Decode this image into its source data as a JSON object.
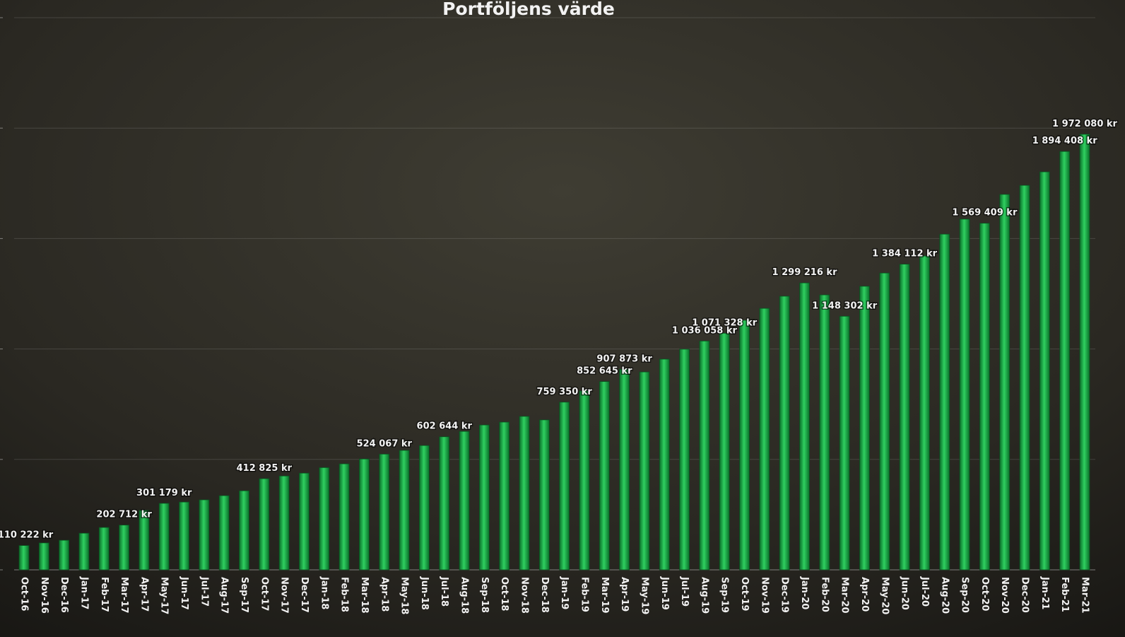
{
  "chart_data": {
    "type": "bar",
    "title": "Portföljens värde",
    "categories": [
      "Oct-16",
      "Nov-16",
      "Dec-16",
      "Jan-17",
      "Feb-17",
      "Mar-17",
      "Apr-17",
      "May-17",
      "Jun-17",
      "Jul-17",
      "Aug-17",
      "Sep-17",
      "Oct-17",
      "Nov-17",
      "Dec-17",
      "Jan-18",
      "Feb-18",
      "Mar-18",
      "Apr-18",
      "May-18",
      "Jun-18",
      "Jul-18",
      "Aug-18",
      "Sep-18",
      "Oct-18",
      "Nov-18",
      "Dec-18",
      "Jan-19",
      "Feb-19",
      "Mar-19",
      "Apr-19",
      "May-19",
      "Jun-19",
      "Jul-19",
      "Aug-19",
      "Sep-19",
      "Oct-19",
      "Nov-19",
      "Dec-19",
      "Jan-20",
      "Feb-20",
      "Mar-20",
      "Apr-20",
      "May-20",
      "Jun-20",
      "Jul-20",
      "Aug-20",
      "Sep-20",
      "Oct-20",
      "Nov-20",
      "Dec-20",
      "Jan-21",
      "Feb-21",
      "Mar-21"
    ],
    "values": [
      110222,
      122000,
      134000,
      166000,
      192000,
      202712,
      269000,
      301179,
      307000,
      317000,
      336000,
      358000,
      412825,
      425000,
      438000,
      463000,
      480000,
      502000,
      524067,
      541000,
      563000,
      602644,
      627000,
      656000,
      669000,
      695000,
      679000,
      759350,
      810000,
      852645,
      907873,
      896000,
      954000,
      999000,
      1036058,
      1071328,
      1130000,
      1184000,
      1239000,
      1299216,
      1245000,
      1148302,
      1284000,
      1344000,
      1384112,
      1421000,
      1520000,
      1588000,
      1569409,
      1700000,
      1741000,
      1802000,
      1894408,
      1972080
    ],
    "value_labels": [
      "110 222 kr",
      null,
      null,
      null,
      null,
      "202 712 kr",
      null,
      "301 179 kr",
      null,
      null,
      null,
      null,
      "412 825 kr",
      null,
      null,
      null,
      null,
      null,
      "524 067 kr",
      null,
      null,
      "602 644 kr",
      null,
      null,
      null,
      null,
      null,
      "759 350 kr",
      null,
      "852 645 kr",
      "907 873 kr",
      null,
      null,
      null,
      "1 036 058 kr",
      "1 071 328 kr",
      null,
      null,
      null,
      "1 299 216 kr",
      null,
      "1 148 302 kr",
      null,
      null,
      "1 384 112 kr",
      null,
      null,
      null,
      "1 569 409 kr",
      null,
      null,
      null,
      "1 894 408 kr",
      "1 972 080 kr"
    ],
    "color": "#1fb34a",
    "ylim": [
      0,
      2500000
    ],
    "yticks": [
      0,
      500000,
      1000000,
      1500000,
      2000000,
      2500000
    ],
    "grid": true
  }
}
